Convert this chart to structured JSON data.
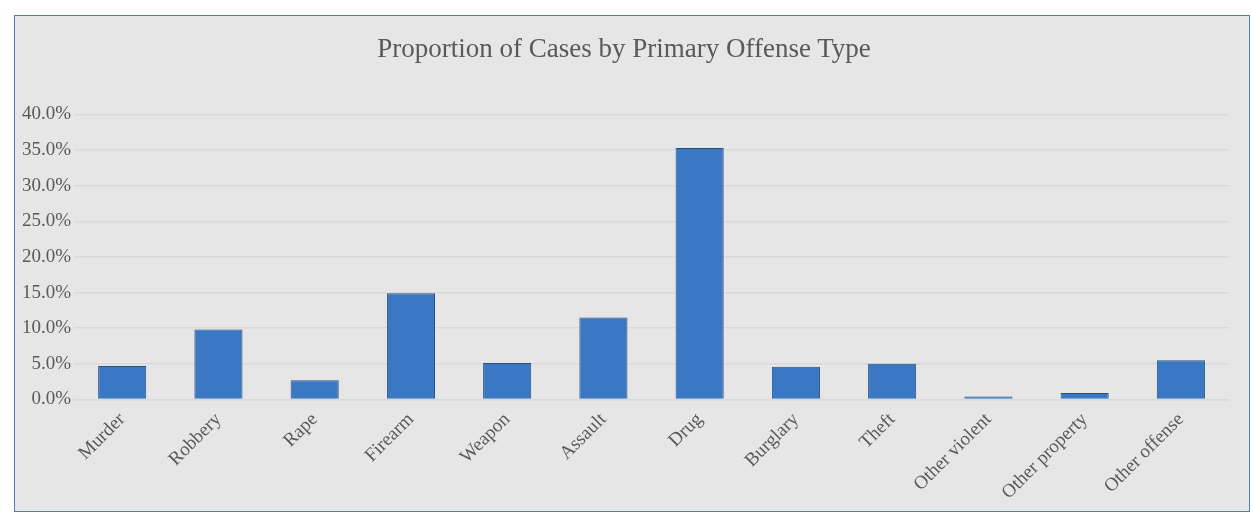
{
  "chart_data": {
    "type": "bar",
    "title": "Proportion of Cases by Primary Offense Type",
    "categories": [
      "Murder",
      "Robbery",
      "Rape",
      "Firearm",
      "Weapon",
      "Assault",
      "Drug",
      "Burglary",
      "Theft",
      "Other violent",
      "Other property",
      "Other offense"
    ],
    "values": [
      4.7,
      9.8,
      2.7,
      14.9,
      5.1,
      11.5,
      35.3,
      4.6,
      5.0,
      0.4,
      0.9,
      5.5
    ],
    "color": "#3a78c4",
    "ylim": [
      0,
      40
    ],
    "yticks": [
      {
        "value": 0,
        "label": "0.0%"
      },
      {
        "value": 5,
        "label": "5.0%"
      },
      {
        "value": 10,
        "label": "10.0%"
      },
      {
        "value": 15,
        "label": "15.0%"
      },
      {
        "value": 20,
        "label": "20.0%"
      },
      {
        "value": 25,
        "label": "25.0%"
      },
      {
        "value": 30,
        "label": "30.0%"
      },
      {
        "value": 35,
        "label": "35.0%"
      },
      {
        "value": 40,
        "label": "40.0%"
      }
    ],
    "grid": "y",
    "legend": false
  }
}
